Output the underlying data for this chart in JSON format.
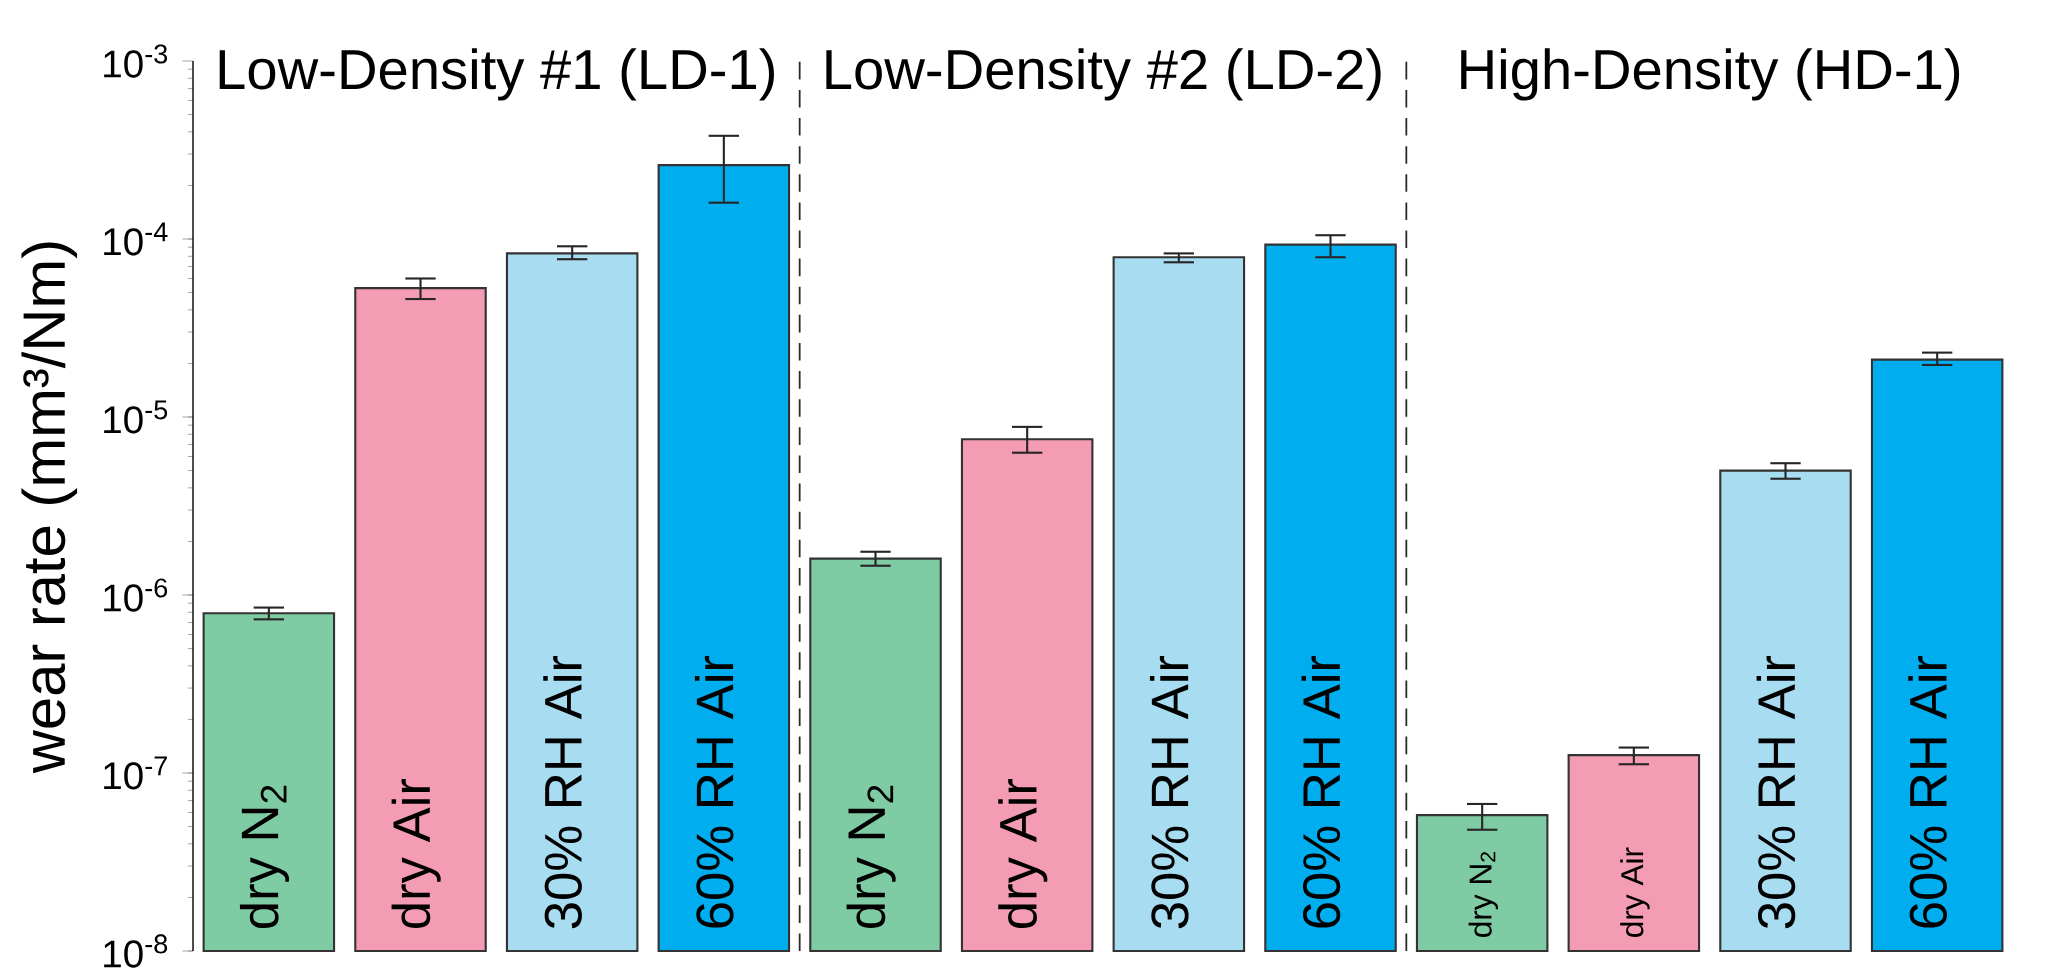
{
  "chart_data": {
    "type": "bar",
    "ylabel": "wear rate (mm³/Nm)",
    "log": true,
    "categories": [
      "dry N$_{2}$",
      "dry Air",
      "30% RH Air",
      "60% RH Air",
      "dry N$_{2}$",
      "dry Air",
      "30% RH Air",
      "60% RH Air",
      "dry N$_{2}$",
      "dry Air",
      "30% RH Air",
      "60% RH Air"
    ],
    "values": [
      7.9e-07,
      5.3e-05,
      8.3e-05,
      0.00026,
      1.6e-06,
      7.5e-06,
      7.9e-05,
      9.3e-05,
      5.8e-08,
      1.26e-07,
      5e-06,
      2.1e-05
    ],
    "errors": [
      [
        7.3e-07,
        8.5e-07
      ],
      [
        4.6e-05,
        6e-05
      ],
      [
        7.7e-05,
        9.1e-05
      ],
      [
        0.00016,
        0.00038
      ],
      [
        1.46e-06,
        1.75e-06
      ],
      [
        6.3e-06,
        8.8e-06
      ],
      [
        7.4e-05,
        8.3e-05
      ],
      [
        7.9e-05,
        0.000105
      ],
      [
        4.8e-08,
        6.7e-08
      ],
      [
        1.12e-07,
        1.39e-07
      ],
      [
        4.5e-06,
        5.5e-06
      ],
      [
        1.96e-05,
        2.3e-05
      ]
    ],
    "colors": [
      "#7fcba4",
      "#f49cb4",
      "#a8dcf0",
      "#00aeef",
      "#7fcba4",
      "#f49cb4",
      "#a8dcf0",
      "#00aeef",
      "#7fcba4",
      "#f49cb4",
      "#a8dcf0",
      "#00aeef"
    ],
    "ylim": [
      1e-08,
      0.001
    ],
    "yticks": [
      {
        "value": 1e-08,
        "label": "10$^{-8}$"
      },
      {
        "value": 1e-07,
        "label": "10$^{-7}$"
      },
      {
        "value": 1e-06,
        "label": "10$^{-6}$"
      },
      {
        "value": 1e-05,
        "label": "10$^{-5}$"
      },
      {
        "value": 0.0001,
        "label": "10$^{-4}$"
      },
      {
        "value": 0.001,
        "label": "10$^{-3}$"
      }
    ],
    "annotations": [
      "Low-Density #1 (LD-1)",
      "Low-Density #2 (LD-2)",
      "High-Density (HD-1)"
    ]
  }
}
